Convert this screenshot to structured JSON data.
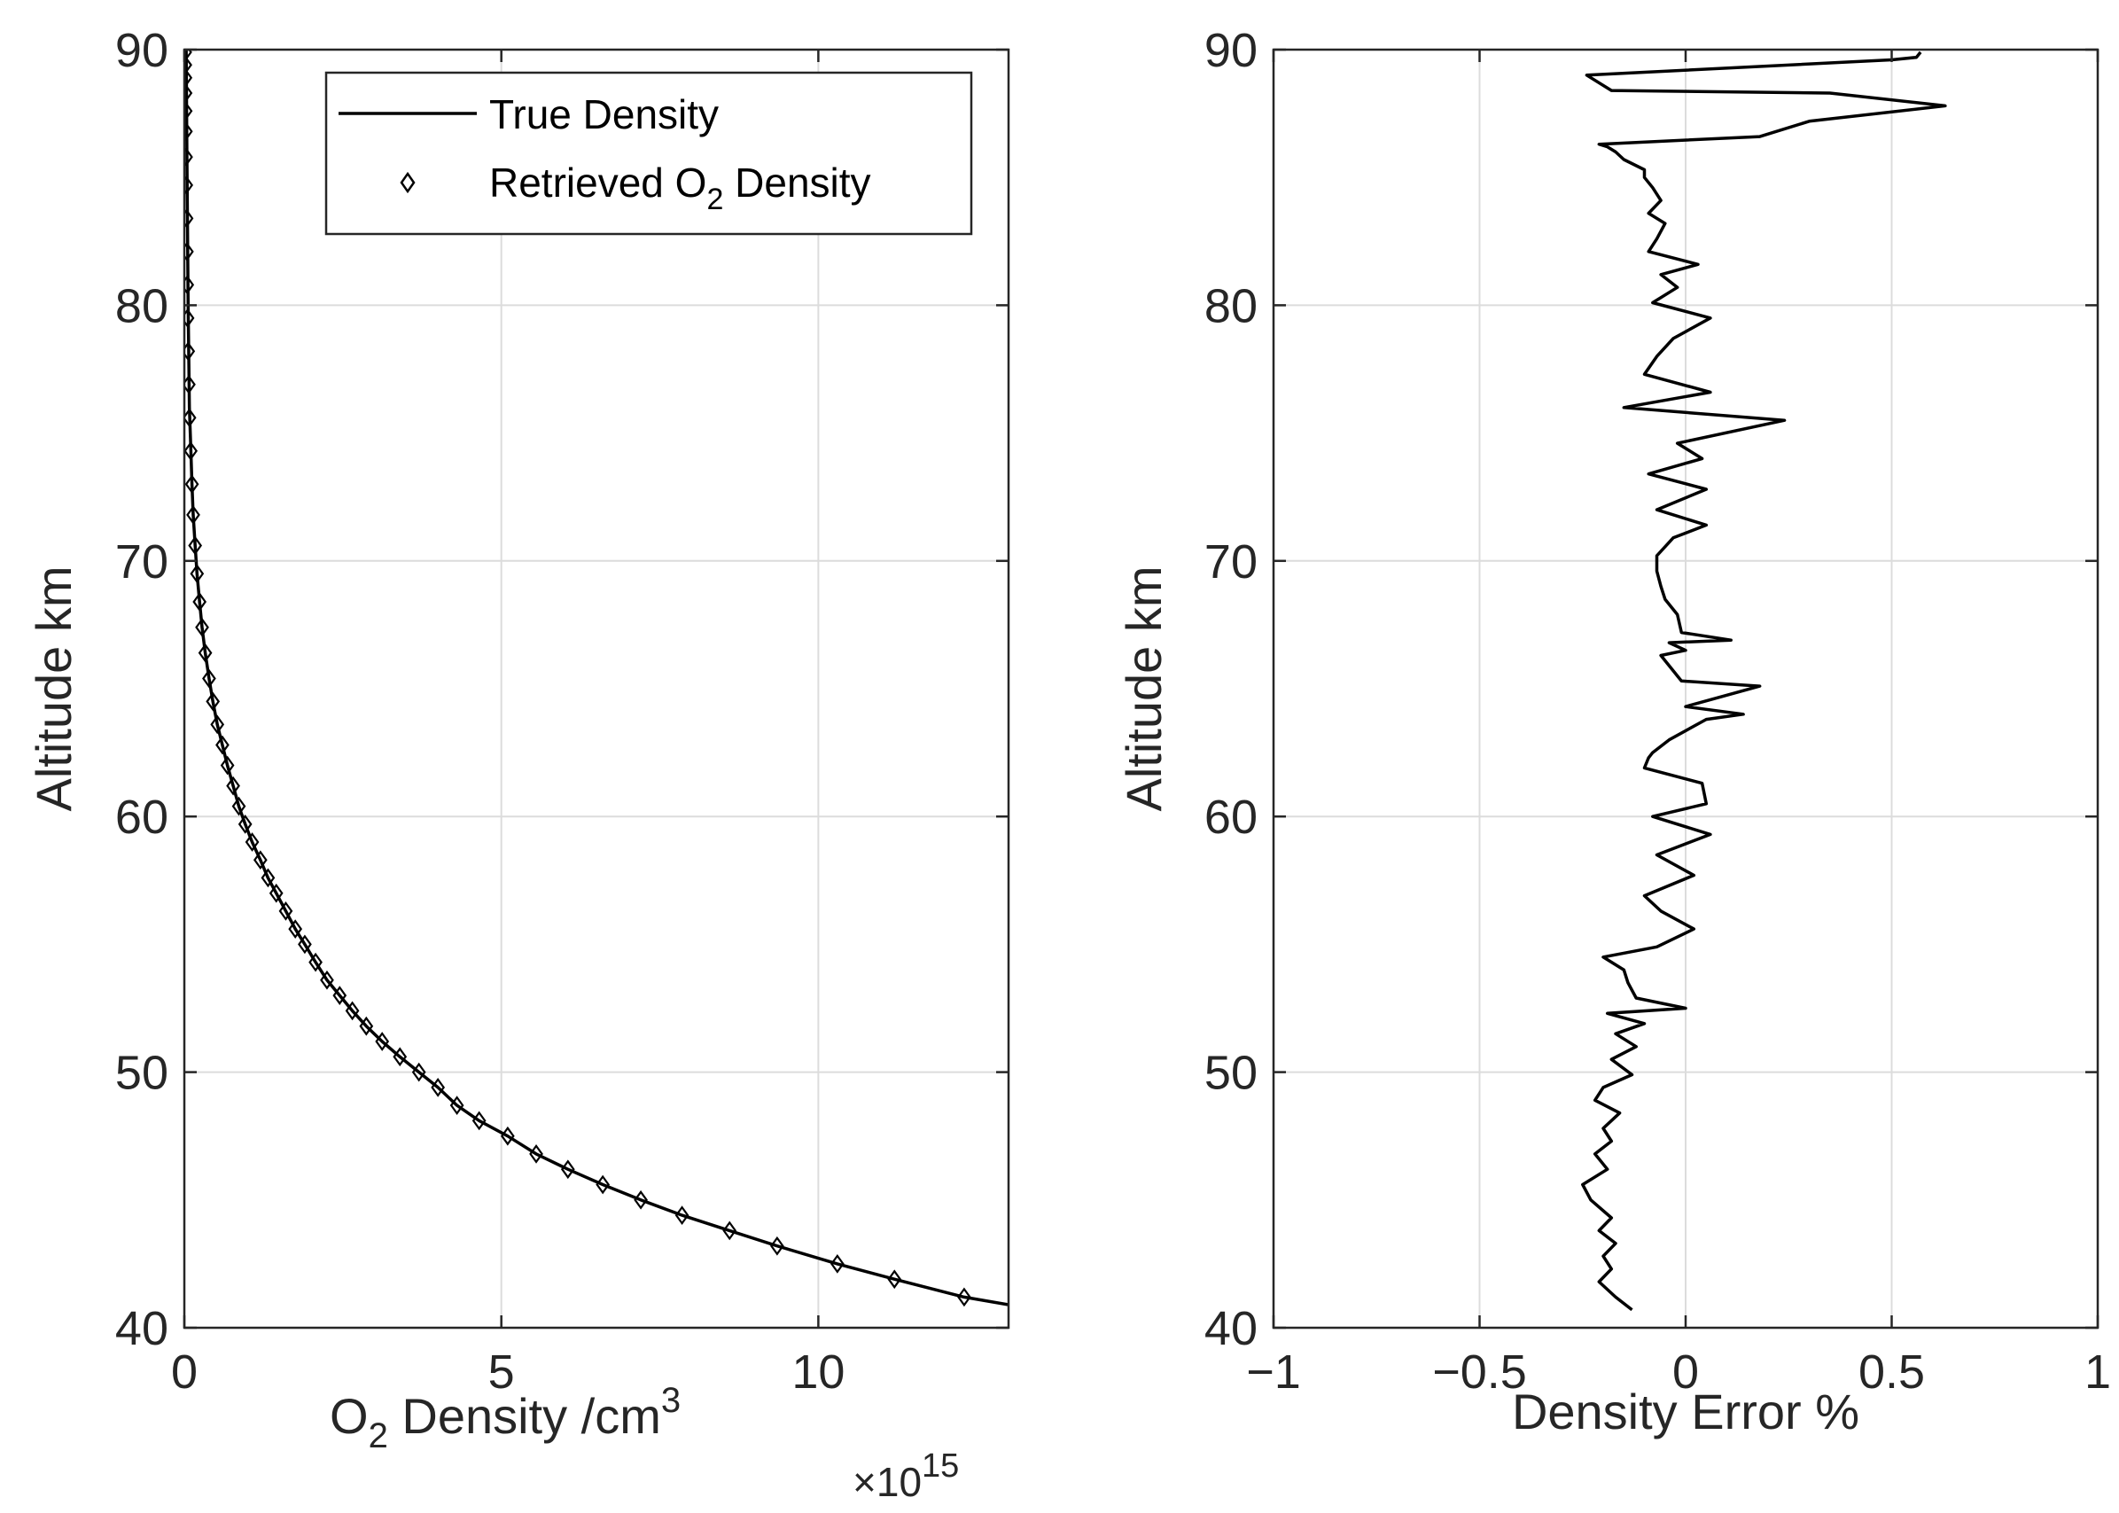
{
  "chart_data": [
    {
      "type": "line",
      "title": "",
      "xlabel": {
        "base": "O",
        "sub": "2",
        "rest": " Density /cm",
        "sup": "3"
      },
      "xscale_label": {
        "prefix": "×10",
        "exp": "15"
      },
      "ylabel": "Altitude km",
      "xlim": [
        0,
        13
      ],
      "ylim": [
        40,
        90
      ],
      "xticks": [
        0,
        5,
        10
      ],
      "xtick_labels": [
        "0",
        "5",
        "10"
      ],
      "yticks": [
        40,
        50,
        60,
        70,
        80,
        90
      ],
      "ytick_labels": [
        "40",
        "50",
        "60",
        "70",
        "80",
        "90"
      ],
      "grid": true,
      "legend": {
        "position": "top-right",
        "entries": [
          {
            "label": "True Density",
            "marker": "line"
          },
          {
            "label_base": "Retrieved O",
            "label_sub": "2",
            "label_rest": " Density",
            "marker": "diamond"
          }
        ]
      },
      "series": [
        {
          "name": "True Density",
          "style": "line",
          "x": [
            13.0,
            12.3,
            11.2,
            10.3,
            9.35,
            8.6,
            7.85,
            7.2,
            6.6,
            6.05,
            5.55,
            5.1,
            4.65,
            4.3,
            4.0,
            3.7,
            3.4,
            3.12,
            2.87,
            2.65,
            2.45,
            2.25,
            2.07,
            1.9,
            1.75,
            1.6,
            1.45,
            1.32,
            1.2,
            1.07,
            0.96,
            0.86,
            0.77,
            0.68,
            0.6,
            0.52,
            0.45,
            0.39,
            0.33,
            0.28,
            0.24,
            0.2,
            0.17,
            0.14,
            0.12,
            0.1,
            0.08,
            0.07,
            0.06,
            0.05,
            0.04,
            0.03
          ],
          "y": [
            40.9,
            41.2,
            41.9,
            42.5,
            43.2,
            43.8,
            44.4,
            45.0,
            45.6,
            46.2,
            46.8,
            47.5,
            48.1,
            48.7,
            49.4,
            50.0,
            50.6,
            51.2,
            51.8,
            52.4,
            53.0,
            53.6,
            54.3,
            55.0,
            55.6,
            56.3,
            57.0,
            57.6,
            58.3,
            59.0,
            59.7,
            60.4,
            61.2,
            62.0,
            62.8,
            63.6,
            64.5,
            65.4,
            66.4,
            67.4,
            68.4,
            69.5,
            70.6,
            71.8,
            73.0,
            74.5,
            76.0,
            78.0,
            80.0,
            83.0,
            86.0,
            90.0
          ]
        },
        {
          "name": "Retrieved O2 Density",
          "style": "diamond",
          "x": [
            12.3,
            11.2,
            10.3,
            9.35,
            8.6,
            7.85,
            7.2,
            6.6,
            6.05,
            5.55,
            5.1,
            4.65,
            4.3,
            4.0,
            3.7,
            3.4,
            3.12,
            2.87,
            2.65,
            2.45,
            2.25,
            2.07,
            1.9,
            1.75,
            1.6,
            1.45,
            1.32,
            1.2,
            1.07,
            0.96,
            0.86,
            0.77,
            0.68,
            0.6,
            0.52,
            0.45,
            0.39,
            0.33,
            0.28,
            0.24,
            0.2,
            0.17,
            0.14,
            0.12,
            0.1,
            0.08,
            0.07,
            0.06,
            0.05,
            0.045,
            0.04,
            0.035,
            0.03,
            0.027,
            0.024,
            0.021,
            0.019,
            0.017,
            0.015,
            0.013
          ],
          "y": [
            41.2,
            41.9,
            42.5,
            43.2,
            43.8,
            44.4,
            45.0,
            45.6,
            46.2,
            46.8,
            47.5,
            48.1,
            48.7,
            49.4,
            50.0,
            50.6,
            51.2,
            51.8,
            52.4,
            53.0,
            53.6,
            54.3,
            55.0,
            55.6,
            56.3,
            57.0,
            57.6,
            58.3,
            59.0,
            59.7,
            60.4,
            61.2,
            62.0,
            62.8,
            63.6,
            64.5,
            65.4,
            66.4,
            67.4,
            68.4,
            69.5,
            70.6,
            71.8,
            73.0,
            74.3,
            75.6,
            76.9,
            78.2,
            79.5,
            80.8,
            82.1,
            83.4,
            84.7,
            85.8,
            86.8,
            87.6,
            88.3,
            88.9,
            89.4,
            89.9
          ]
        }
      ]
    },
    {
      "type": "line",
      "title": "",
      "xlabel": "Density Error %",
      "ylabel": "Altitude km",
      "xlim": [
        -1,
        1
      ],
      "ylim": [
        40,
        90
      ],
      "xticks": [
        -1,
        -0.5,
        0,
        0.5,
        1
      ],
      "xtick_labels": [
        "−1",
        "−0.5",
        "0",
        "0.5",
        "1"
      ],
      "yticks": [
        40,
        50,
        60,
        70,
        80,
        90
      ],
      "ytick_labels": [
        "40",
        "50",
        "60",
        "70",
        "80",
        "90"
      ],
      "grid": true,
      "series": [
        {
          "name": "Density Error",
          "style": "line",
          "x": [
            -0.13,
            -0.17,
            -0.21,
            -0.18,
            -0.2,
            -0.17,
            -0.21,
            -0.18,
            -0.23,
            -0.25,
            -0.19,
            -0.22,
            -0.18,
            -0.2,
            -0.16,
            -0.22,
            -0.2,
            -0.13,
            -0.18,
            -0.12,
            -0.17,
            -0.1,
            -0.19,
            0.0,
            -0.12,
            -0.14,
            -0.15,
            -0.2,
            -0.07,
            0.02,
            -0.06,
            -0.1,
            0.02,
            -0.07,
            0.06,
            -0.08,
            0.05,
            0.04,
            -0.1,
            -0.09,
            -0.08,
            -0.04,
            0.05,
            0.14,
            0.0,
            0.18,
            -0.01,
            -0.02,
            -0.06,
            0.0,
            -0.04,
            0.11,
            -0.01,
            -0.02,
            -0.05,
            -0.06,
            -0.07,
            -0.07,
            -0.03,
            0.05,
            -0.07,
            0.05,
            -0.09,
            0.04,
            -0.02,
            0.24,
            -0.15,
            0.06,
            -0.1,
            -0.07,
            -0.03,
            0.06,
            -0.08,
            -0.02,
            -0.06,
            0.03,
            -0.09,
            -0.07,
            -0.05,
            -0.09,
            -0.06,
            -0.08,
            -0.1,
            -0.1,
            -0.15,
            -0.17,
            -0.19,
            -0.21,
            0.18,
            0.3,
            0.63,
            0.35,
            -0.18,
            -0.24,
            0.5,
            0.56,
            0.57
          ],
          "y": [
            40.7,
            41.2,
            41.8,
            42.3,
            42.8,
            43.3,
            43.8,
            44.3,
            45.0,
            45.6,
            46.2,
            46.8,
            47.3,
            47.8,
            48.4,
            48.9,
            49.4,
            49.9,
            50.5,
            51.0,
            51.5,
            51.9,
            52.3,
            52.5,
            52.9,
            53.5,
            54.0,
            54.5,
            54.9,
            55.6,
            56.3,
            56.9,
            57.7,
            58.5,
            59.3,
            60.0,
            60.5,
            61.3,
            61.9,
            62.3,
            62.5,
            63.0,
            63.8,
            64.0,
            64.3,
            65.1,
            65.3,
            65.5,
            66.3,
            66.5,
            66.8,
            66.9,
            67.2,
            67.9,
            68.5,
            69.0,
            69.6,
            70.2,
            70.9,
            71.4,
            72.0,
            72.8,
            73.4,
            74.0,
            74.6,
            75.5,
            76.0,
            76.6,
            77.3,
            78.0,
            78.7,
            79.5,
            80.1,
            80.7,
            81.2,
            81.6,
            82.1,
            82.6,
            83.2,
            83.6,
            84.1,
            84.6,
            85.0,
            85.3,
            85.7,
            86.0,
            86.2,
            86.3,
            86.6,
            87.2,
            87.8,
            88.3,
            88.4,
            89.0,
            89.6,
            89.7,
            89.9
          ]
        }
      ]
    }
  ]
}
